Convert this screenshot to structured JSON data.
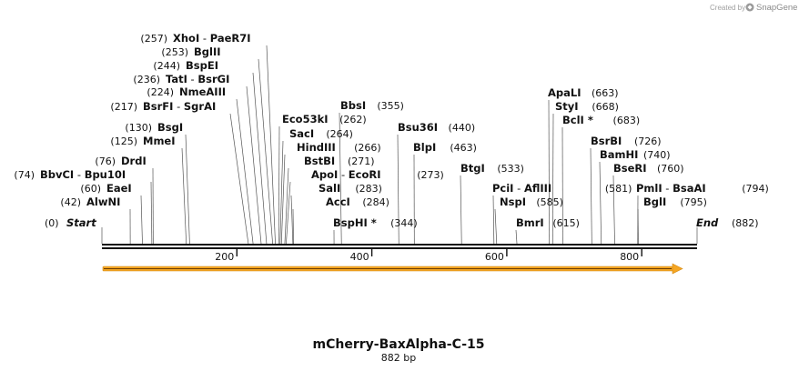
{
  "credit": "Created by",
  "credit_brand": "SnapGene",
  "map_title": "mCherry-BaxAlpha-C-15",
  "map_length_label": "882 bp",
  "seq_length": 882,
  "axis_ticks": [
    200,
    400,
    600,
    800
  ],
  "feature_color": "#f5a623",
  "terminals": [
    {
      "name": "Start",
      "pos_label": "(0)",
      "position": 0
    },
    {
      "name": "End",
      "pos_label": "(882)",
      "position": 882
    }
  ],
  "enzymes": [
    {
      "label": "XhoI",
      "pair": "PaeR7I",
      "pos_label": "(257)",
      "position": 257
    },
    {
      "label": "BglII",
      "pos_label": "(253)",
      "position": 253
    },
    {
      "label": "BspEI",
      "pos_label": "(244)",
      "position": 244
    },
    {
      "label": "TatI",
      "pair": "BsrGI",
      "pos_label": "(236)",
      "position": 236
    },
    {
      "label": "NmeAIII",
      "pos_label": "(224)",
      "position": 224
    },
    {
      "label": "BsrFI",
      "pair": "SgrAI",
      "pos_label": "(217)",
      "position": 217
    },
    {
      "label": "BsgI",
      "pos_label": "(130)",
      "position": 130
    },
    {
      "label": "MmeI",
      "pos_label": "(125)",
      "position": 125
    },
    {
      "label": "DrdI",
      "pos_label": "(76)",
      "position": 76
    },
    {
      "label": "BbvCI",
      "pair": "Bpu10I",
      "pos_label": "(74)",
      "position": 74
    },
    {
      "label": "EaeI",
      "pos_label": "(60)",
      "position": 60
    },
    {
      "label": "AlwNI",
      "pos_label": "(42)",
      "position": 42
    },
    {
      "label": "BbsI",
      "pos_label": "(355)",
      "position": 355
    },
    {
      "label": "Eco53kI",
      "pos_label": "(262)",
      "position": 262
    },
    {
      "label": "SacI",
      "pos_label": "(264)",
      "position": 264
    },
    {
      "label": "HindIII",
      "pos_label": "(266)",
      "position": 266
    },
    {
      "label": "BstBI",
      "pos_label": "(271)",
      "position": 271
    },
    {
      "label": "ApoI",
      "pair": "EcoRI",
      "pos_label": "(273)",
      "position": 273
    },
    {
      "label": "SalI",
      "pos_label": "(283)",
      "position": 283
    },
    {
      "label": "AccI",
      "pos_label": "(284)",
      "position": 284
    },
    {
      "label": "BspHI",
      "star": "*",
      "pos_label": "(344)",
      "position": 344
    },
    {
      "label": "Bsu36I",
      "pos_label": "(440)",
      "position": 440
    },
    {
      "label": "BlpI",
      "pos_label": "(463)",
      "position": 463
    },
    {
      "label": "BtgI",
      "pos_label": "(533)",
      "position": 533
    },
    {
      "label": "PciI",
      "pair": "AflIII",
      "pos_label": "(581)",
      "position": 581
    },
    {
      "label": "NspI",
      "pos_label": "(585)",
      "position": 585
    },
    {
      "label": "BmrI",
      "pos_label": "(615)",
      "position": 615
    },
    {
      "label": "ApaLI",
      "pos_label": "(663)",
      "position": 663
    },
    {
      "label": "StyI",
      "pos_label": "(668)",
      "position": 668
    },
    {
      "label": "BclI",
      "star": "*",
      "pos_label": "(683)",
      "position": 683
    },
    {
      "label": "BsrBI",
      "pos_label": "(726)",
      "position": 726
    },
    {
      "label": "BamHI",
      "pos_label": "(740)",
      "position": 740
    },
    {
      "label": "BseRI",
      "pos_label": "(760)",
      "position": 760
    },
    {
      "label": "PmlI",
      "pair": "BsaAI",
      "pos_label": "(794)",
      "position": 794
    },
    {
      "label": "BglI",
      "pos_label": "(795)",
      "position": 795
    }
  ]
}
